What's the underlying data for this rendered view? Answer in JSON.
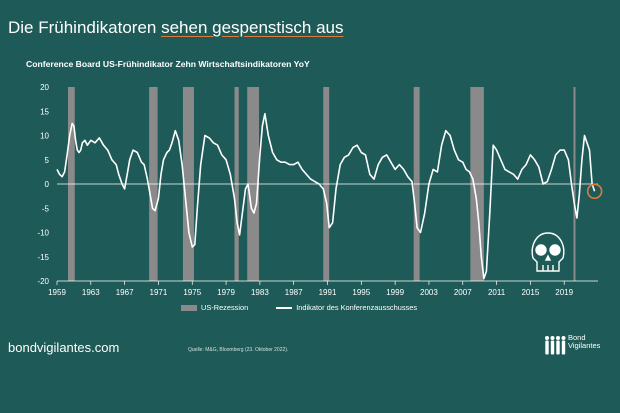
{
  "header": {
    "title_plain": "Die Frühindikatoren ",
    "title_underlined": "sehen gespenstisch aus"
  },
  "chart_data": {
    "type": "line",
    "title": "Conference Board US-Frühindikator Zehn Wirtschaftsindikatoren YoY",
    "xlabel": "",
    "ylabel": "",
    "xlim": [
      1959,
      2023
    ],
    "ylim": [
      -20,
      20
    ],
    "yticks": [
      20,
      15,
      10,
      5,
      0,
      -5,
      -10,
      -15,
      -20
    ],
    "xticks": [
      "1959",
      "1963",
      "1967",
      "1971",
      "1975",
      "1979",
      "1983",
      "1987",
      "1991",
      "1995",
      "1999",
      "2003",
      "2007",
      "2011",
      "2015",
      "2019"
    ],
    "grid": false,
    "legend_position": "bottom",
    "series": [
      {
        "name": "Indikator des Konferenzausschusses",
        "color": "#ffffff",
        "x": [
          1959.0,
          1959.3,
          1959.6,
          1959.9,
          1960.2,
          1960.5,
          1960.8,
          1961.0,
          1961.2,
          1961.4,
          1961.6,
          1961.8,
          1962.0,
          1962.3,
          1962.6,
          1963.0,
          1963.5,
          1964.0,
          1964.5,
          1965.0,
          1965.5,
          1966.0,
          1966.3,
          1966.7,
          1967.0,
          1967.3,
          1967.6,
          1968.0,
          1968.5,
          1969.0,
          1969.3,
          1969.7,
          1970.0,
          1970.3,
          1970.6,
          1971.0,
          1971.3,
          1971.6,
          1972.0,
          1972.3,
          1972.6,
          1973.0,
          1973.4,
          1973.8,
          1974.2,
          1974.6,
          1975.0,
          1975.3,
          1975.6,
          1976.0,
          1976.5,
          1977.0,
          1977.5,
          1978.0,
          1978.5,
          1979.0,
          1979.5,
          1980.0,
          1980.3,
          1980.6,
          1981.0,
          1981.3,
          1981.6,
          1982.0,
          1982.3,
          1982.6,
          1983.0,
          1983.3,
          1983.6,
          1984.0,
          1984.5,
          1985.0,
          1985.5,
          1986.0,
          1986.5,
          1987.0,
          1987.5,
          1988.0,
          1988.5,
          1989.0,
          1989.5,
          1990.0,
          1990.5,
          1990.9,
          1991.2,
          1991.6,
          1992.0,
          1992.5,
          1993.0,
          1993.5,
          1994.0,
          1994.5,
          1995.0,
          1995.5,
          1996.0,
          1996.5,
          1997.0,
          1997.5,
          1998.0,
          1998.5,
          1999.0,
          1999.5,
          2000.0,
          2000.5,
          2001.0,
          2001.3,
          2001.6,
          2002.0,
          2002.5,
          2003.0,
          2003.5,
          2004.0,
          2004.5,
          2005.0,
          2005.5,
          2006.0,
          2006.5,
          2007.0,
          2007.4,
          2007.8,
          2008.2,
          2008.6,
          2008.9,
          2009.2,
          2009.5,
          2009.8,
          2010.2,
          2010.6,
          2011.0,
          2011.5,
          2012.0,
          2012.5,
          2013.0,
          2013.5,
          2014.0,
          2014.5,
          2015.0,
          2015.5,
          2016.0,
          2016.5,
          2017.0,
          2017.5,
          2018.0,
          2018.5,
          2019.0,
          2019.5,
          2019.9,
          2020.2,
          2020.5,
          2020.8,
          2021.1,
          2021.4,
          2021.7,
          2022.0,
          2022.3,
          2022.6
        ],
        "values": [
          3,
          2,
          1.5,
          2.5,
          6,
          10,
          12.5,
          12,
          9,
          7,
          6.5,
          7,
          8.5,
          9,
          8,
          9,
          8.5,
          9.5,
          8,
          7,
          5,
          4,
          2,
          0,
          -1,
          2,
          5,
          7,
          6.5,
          4.5,
          4,
          1,
          -2,
          -5,
          -5.5,
          -3,
          2,
          5,
          6.5,
          7,
          8.5,
          11,
          9,
          4,
          -3,
          -10,
          -13,
          -12.5,
          -5,
          4,
          10,
          9.5,
          8.5,
          8,
          6,
          5,
          2,
          -3,
          -8,
          -10.5,
          -5,
          -1,
          0,
          -5,
          -6,
          -4,
          6,
          12,
          14.5,
          10,
          6.5,
          5,
          4.5,
          4.5,
          4,
          4,
          4.5,
          3,
          2,
          1,
          0.5,
          0,
          -1,
          -4,
          -9,
          -8,
          -1,
          4,
          5.5,
          6,
          7.5,
          8,
          6.5,
          6,
          2,
          1,
          4,
          5.5,
          6,
          4.5,
          3,
          4,
          3,
          1.5,
          0.5,
          -4,
          -9,
          -10,
          -6,
          0,
          3,
          2.5,
          8,
          11,
          10,
          7,
          5,
          4.5,
          3,
          2.5,
          1,
          -3,
          -8,
          -15,
          -19.5,
          -18,
          -6,
          8,
          7,
          5,
          3,
          2.5,
          2,
          1,
          3,
          4,
          6,
          5,
          3.5,
          0,
          0.5,
          3,
          6,
          7,
          7,
          5,
          -0.5,
          -4,
          -7,
          -2,
          5,
          10,
          8.5,
          7,
          0,
          -1.5
        ]
      }
    ],
    "recessions": [
      [
        1960.3,
        1961.1
      ],
      [
        1969.9,
        1970.9
      ],
      [
        1973.9,
        1975.2
      ],
      [
        1980.0,
        1980.5
      ],
      [
        1981.5,
        1982.9
      ],
      [
        1990.5,
        1991.2
      ],
      [
        2001.2,
        2001.9
      ],
      [
        2007.9,
        2009.5
      ],
      [
        2020.1,
        2020.3
      ]
    ],
    "recession_color": "#8a8a8a",
    "highlight": {
      "x": 2022.6,
      "y": -1.5,
      "color": "#e07a3a"
    },
    "legend": {
      "recession_label": "US-Rezession",
      "line_label": "Indikator des Konferenzausschusses"
    }
  },
  "footer": {
    "site": "bondvigilantes.com",
    "source": "Quelle: M&G, Bloomberg (23. Oktober 2022).",
    "brand_line1": "Bond",
    "brand_line2": "Vigilantes"
  }
}
